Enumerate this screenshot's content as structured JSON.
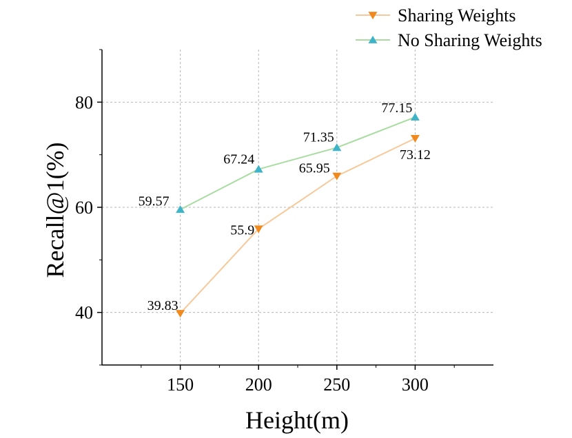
{
  "chart_data": {
    "type": "line",
    "xlabel": "Height(m)",
    "ylabel": "Recall@1(%)",
    "x": [
      150,
      200,
      250,
      300
    ],
    "xlim": [
      100,
      350
    ],
    "ylim": [
      30,
      90
    ],
    "xticks": [
      150,
      200,
      250,
      300
    ],
    "yticks": [
      40,
      60,
      80
    ],
    "grid": true,
    "legend_position": "top-right",
    "series": [
      {
        "name": "Sharing Weights",
        "values": [
          39.83,
          55.9,
          65.95,
          73.12
        ],
        "labels": [
          "39.83",
          "55.9",
          "65.95",
          "73.12"
        ],
        "line_color": "#f7c99a",
        "marker_color": "#f08a1e",
        "marker": "triangle-down"
      },
      {
        "name": "No Sharing Weights",
        "values": [
          59.57,
          67.24,
          71.35,
          77.15
        ],
        "labels": [
          "59.57",
          "67.24",
          "71.35",
          "77.15"
        ],
        "line_color": "#a8dca0",
        "marker_color": "#3fb3c8",
        "marker": "triangle-up"
      }
    ]
  }
}
